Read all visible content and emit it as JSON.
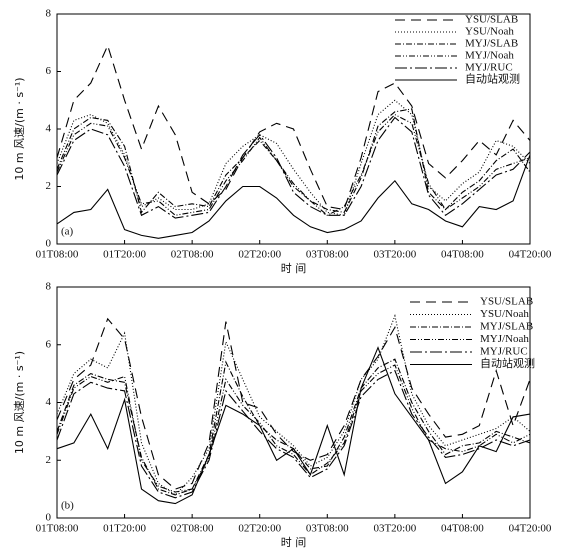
{
  "chart_data": [
    {
      "type": "line",
      "panel_label": "(a)",
      "x_label": "时 间",
      "y_label": "10 m 风速/(m · s⁻¹)",
      "x": [
        0,
        3,
        6,
        9,
        12,
        15,
        18,
        21,
        24,
        27,
        30,
        33,
        36,
        39,
        42,
        45,
        48,
        51,
        54,
        57,
        60,
        63,
        66,
        69,
        72,
        75,
        78,
        81,
        84
      ],
      "xlim": [
        0,
        84
      ],
      "xticks": [
        {
          "value": 0,
          "label": "01T08:00"
        },
        {
          "value": 12,
          "label": "01T20:00"
        },
        {
          "value": 24,
          "label": "02T08:00"
        },
        {
          "value": 36,
          "label": "02T20:00"
        },
        {
          "value": 48,
          "label": "03T08:00"
        },
        {
          "value": 60,
          "label": "03T20:00"
        },
        {
          "value": 72,
          "label": "04T08:00"
        },
        {
          "value": 84,
          "label": "04T20:00"
        }
      ],
      "ylim": [
        0,
        8
      ],
      "yticks": [
        0,
        2,
        4,
        6,
        8
      ],
      "series": [
        {
          "name": "YSU/SLAB",
          "color": "#000000",
          "dash": "10,6",
          "values": [
            3.0,
            5.0,
            5.6,
            6.9,
            5.0,
            3.3,
            4.8,
            3.8,
            1.8,
            1.4,
            1.9,
            3.0,
            3.9,
            4.2,
            4.0,
            2.6,
            1.3,
            1.2,
            3.0,
            5.3,
            5.6,
            4.8,
            2.8,
            2.3,
            2.9,
            3.6,
            3.1,
            4.3,
            3.6
          ]
        },
        {
          "name": "YSU/Noah",
          "color": "#000000",
          "dash": "1,2",
          "values": [
            2.8,
            4.3,
            4.5,
            4.2,
            3.1,
            1.3,
            1.6,
            1.2,
            1.2,
            1.4,
            2.8,
            3.4,
            3.8,
            3.5,
            2.6,
            1.8,
            1.1,
            1.0,
            2.8,
            4.5,
            5.0,
            4.5,
            2.0,
            1.5,
            2.1,
            2.5,
            3.6,
            3.4,
            2.8
          ]
        },
        {
          "name": "MYJ/SLAB",
          "color": "#000000",
          "dash": "6,2,1,2",
          "values": [
            2.6,
            4.0,
            4.4,
            4.3,
            3.4,
            1.1,
            1.8,
            1.3,
            1.4,
            1.3,
            2.4,
            3.0,
            3.6,
            2.9,
            2.0,
            1.5,
            1.2,
            1.1,
            2.3,
            4.1,
            4.6,
            4.7,
            1.8,
            1.2,
            1.8,
            2.2,
            2.9,
            3.3,
            2.5
          ]
        },
        {
          "name": "MYJ/Noah",
          "color": "#000000",
          "dash": "6,2,1,2,1,2",
          "values": [
            2.5,
            3.8,
            4.2,
            4.1,
            3.0,
            1.4,
            1.5,
            1.0,
            1.1,
            1.2,
            2.2,
            2.9,
            3.7,
            2.9,
            2.1,
            1.5,
            1.0,
            1.3,
            2.4,
            3.9,
            4.5,
            4.2,
            2.1,
            1.2,
            1.6,
            2.0,
            2.6,
            2.8,
            3.0
          ]
        },
        {
          "name": "MYJ/RUC",
          "color": "#000000",
          "dash": "12,3,2,3",
          "values": [
            2.4,
            3.6,
            4.0,
            3.8,
            2.7,
            1.0,
            1.3,
            0.9,
            1.0,
            1.1,
            2.0,
            3.1,
            3.8,
            3.0,
            1.8,
            1.3,
            1.0,
            1.0,
            2.0,
            3.6,
            4.4,
            3.9,
            1.7,
            1.0,
            1.4,
            1.9,
            2.4,
            2.6,
            3.2
          ]
        },
        {
          "name": "自动站观测",
          "color": "#000000",
          "values": [
            0.7,
            1.1,
            1.2,
            1.9,
            0.5,
            0.3,
            0.2,
            0.3,
            0.4,
            0.8,
            1.5,
            2.0,
            2.0,
            1.6,
            1.0,
            0.6,
            0.4,
            0.5,
            0.8,
            1.6,
            2.2,
            1.4,
            1.2,
            0.8,
            0.6,
            1.3,
            1.2,
            1.5,
            3.1
          ]
        }
      ]
    },
    {
      "type": "line",
      "panel_label": "(b)",
      "x_label": "时 间",
      "y_label": "10 m 风速/(m · s⁻¹)",
      "x": [
        0,
        3,
        6,
        9,
        12,
        15,
        18,
        21,
        24,
        27,
        30,
        33,
        36,
        39,
        42,
        45,
        48,
        51,
        54,
        57,
        60,
        63,
        66,
        69,
        72,
        75,
        78,
        81,
        84
      ],
      "xlim": [
        0,
        84
      ],
      "xticks": [
        {
          "value": 0,
          "label": "01T08:00"
        },
        {
          "value": 12,
          "label": "01T20:00"
        },
        {
          "value": 24,
          "label": "02T08:00"
        },
        {
          "value": 36,
          "label": "02T20:00"
        },
        {
          "value": 48,
          "label": "03T08:00"
        },
        {
          "value": 60,
          "label": "03T20:00"
        },
        {
          "value": 72,
          "label": "04T08:00"
        },
        {
          "value": 84,
          "label": "04T20:00"
        }
      ],
      "ylim": [
        0,
        8
      ],
      "yticks": [
        0,
        2,
        4,
        6,
        8
      ],
      "series": [
        {
          "name": "YSU/SLAB",
          "color": "#000000",
          "dash": "10,6",
          "values": [
            3.4,
            4.8,
            5.3,
            6.9,
            6.2,
            3.5,
            1.5,
            1.0,
            1.2,
            2.6,
            6.8,
            4.0,
            3.8,
            2.9,
            2.3,
            2.0,
            2.2,
            3.2,
            4.8,
            5.6,
            6.6,
            4.5,
            3.6,
            2.8,
            2.9,
            3.2,
            5.1,
            3.2,
            4.8
          ]
        },
        {
          "name": "YSU/Noah",
          "color": "#000000",
          "dash": "1,2",
          "values": [
            3.6,
            5.0,
            5.5,
            5.2,
            6.4,
            2.6,
            1.2,
            0.8,
            1.4,
            2.4,
            6.1,
            4.8,
            3.5,
            3.0,
            2.5,
            1.8,
            2.1,
            3.0,
            4.8,
            5.5,
            7.0,
            4.3,
            3.2,
            2.5,
            2.7,
            2.9,
            3.1,
            3.5,
            3.0
          ]
        },
        {
          "name": "MYJ/SLAB",
          "color": "#000000",
          "dash": "6,2,1,2",
          "values": [
            3.0,
            4.6,
            5.0,
            4.8,
            4.7,
            2.1,
            1.0,
            0.8,
            1.0,
            2.2,
            5.4,
            4.2,
            3.2,
            2.7,
            2.4,
            1.7,
            1.8,
            2.8,
            4.5,
            5.2,
            5.5,
            4.0,
            3.0,
            2.2,
            2.5,
            2.6,
            3.0,
            2.8,
            2.6
          ]
        },
        {
          "name": "MYJ/Noah",
          "color": "#000000",
          "dash": "6,2,1,2,1,2",
          "values": [
            2.9,
            4.5,
            4.9,
            4.7,
            4.9,
            2.0,
            1.1,
            0.9,
            1.0,
            2.1,
            4.8,
            3.9,
            3.3,
            2.5,
            2.2,
            1.5,
            1.9,
            2.6,
            4.4,
            5.0,
            5.3,
            3.8,
            2.7,
            2.4,
            2.3,
            2.5,
            2.9,
            2.6,
            2.9
          ]
        },
        {
          "name": "MYJ/RUC",
          "color": "#000000",
          "dash": "12,3,2,3",
          "values": [
            2.7,
            4.3,
            4.7,
            4.5,
            4.4,
            1.8,
            0.9,
            0.7,
            0.9,
            2.0,
            4.4,
            3.7,
            3.0,
            2.4,
            2.1,
            1.4,
            1.7,
            2.5,
            4.2,
            4.8,
            5.1,
            3.6,
            2.8,
            2.1,
            2.2,
            2.4,
            2.7,
            2.5,
            2.7
          ]
        },
        {
          "name": "自动站观测",
          "color": "#000000",
          "values": [
            2.4,
            2.6,
            3.6,
            2.4,
            4.1,
            1.0,
            0.6,
            0.5,
            0.8,
            2.2,
            3.9,
            3.6,
            3.2,
            2.0,
            2.4,
            1.5,
            3.2,
            1.5,
            4.5,
            5.9,
            4.3,
            3.5,
            2.7,
            1.2,
            1.6,
            2.5,
            2.3,
            3.5,
            3.6
          ]
        }
      ]
    }
  ]
}
